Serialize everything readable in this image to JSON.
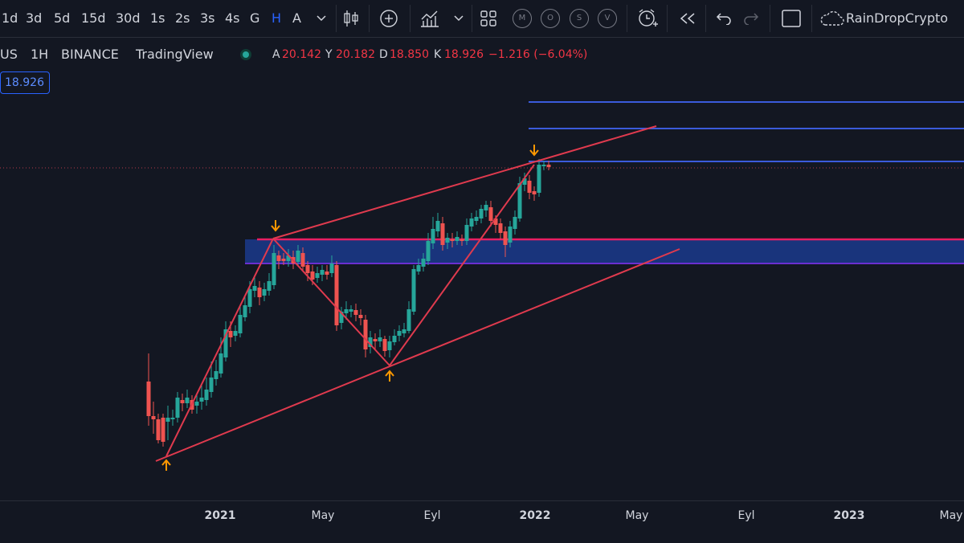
{
  "toolbar": {
    "intervals": [
      "1d",
      "3d",
      "5d",
      "15d",
      "30d",
      "1s",
      "2s",
      "3s",
      "4s",
      "G",
      "H",
      "A"
    ],
    "active_interval": "H",
    "icons": [
      "chevron-down-icon",
      "candles-icon",
      "add-indicator-icon",
      "indicators-icon",
      "chevron-down-icon",
      "layout-grid-icon",
      "alert-clock-icon",
      "replay-icon",
      "undo-icon",
      "redo-icon",
      "fullscreen-icon",
      "cloud-icon"
    ],
    "circle_buttons": [
      "M",
      "O",
      "S",
      "V"
    ],
    "account": "RainDropCrypto"
  },
  "legend": {
    "symbol": "US",
    "interval": "1H",
    "exchange": "BINANCE",
    "platform": "TradingView",
    "open_label": "A",
    "open": "20.142",
    "high_label": "Y",
    "high": "20.182",
    "low_label": "D",
    "low": "18.850",
    "close_label": "K",
    "close": "18.926",
    "change": "−1.216 (−6.04%)"
  },
  "price_label": "18.926",
  "time_axis": [
    {
      "label": "2021",
      "bold": true
    },
    {
      "label": "May",
      "bold": false
    },
    {
      "label": "Eyl",
      "bold": false
    },
    {
      "label": "2022",
      "bold": true
    },
    {
      "label": "May",
      "bold": false
    },
    {
      "label": "Eyl",
      "bold": false
    },
    {
      "label": "2023",
      "bold": true
    },
    {
      "label": "May",
      "bold": false
    }
  ],
  "colors": {
    "background": "#131722",
    "up": "#26a69a",
    "down": "#ef5350",
    "trendline": "#e03a4e",
    "resistance": "#3b5bdb",
    "zone": "#1f3a93",
    "zone_top": "#e91e63",
    "arrow": "#ff9800"
  }
}
